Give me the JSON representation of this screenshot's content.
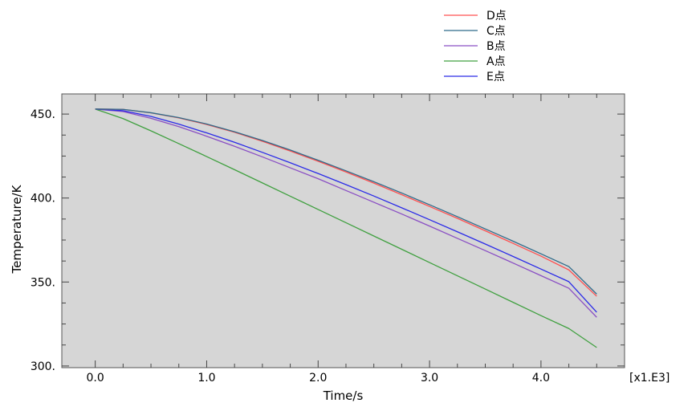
{
  "chart_data": {
    "type": "line",
    "title": "",
    "xlabel": "Time/s",
    "ylabel": "Temperature/K",
    "x_multiplier_label": "[x1.E3]",
    "xlim": [
      -0.3,
      4.75
    ],
    "ylim": [
      299,
      462
    ],
    "x_ticks": [
      0.0,
      1.0,
      2.0,
      3.0,
      4.0
    ],
    "x_tick_labels": [
      "0.0",
      "1.0",
      "2.0",
      "3.0",
      "4.0"
    ],
    "y_ticks": [
      300,
      350,
      400,
      450
    ],
    "y_tick_labels": [
      "300.",
      "350.",
      "400.",
      "450."
    ],
    "grid": false,
    "legend_position": "top-right outside",
    "background_color": "#d6d6d6",
    "x": [
      0.0,
      0.25,
      0.5,
      0.75,
      1.0,
      1.25,
      1.5,
      1.75,
      2.0,
      2.25,
      2.5,
      2.75,
      3.0,
      3.25,
      3.5,
      3.75,
      4.0,
      4.25,
      4.5
    ],
    "series": [
      {
        "name": "D点",
        "color": "#ff5050",
        "values": [
          453.0,
          452.8,
          450.7,
          447.7,
          443.8,
          439.2,
          433.8,
          428.0,
          421.9,
          415.5,
          408.9,
          402.0,
          395.0,
          387.9,
          380.5,
          373.0,
          365.4,
          357.2,
          341.5
        ]
      },
      {
        "name": "C点",
        "color": "#2e6b8a",
        "values": [
          453.0,
          452.8,
          450.8,
          447.9,
          444.1,
          439.5,
          434.3,
          428.6,
          422.5,
          416.2,
          409.7,
          403.0,
          396.0,
          388.9,
          381.6,
          374.3,
          366.8,
          359.2,
          342.8
        ]
      },
      {
        "name": "B点",
        "color": "#8a4fc4",
        "values": [
          453.0,
          451.5,
          447.5,
          442.5,
          436.8,
          430.8,
          424.5,
          418.0,
          411.5,
          404.5,
          397.5,
          390.5,
          383.3,
          376.0,
          368.7,
          361.3,
          353.8,
          346.3,
          329.0
        ]
      },
      {
        "name": "A点",
        "color": "#40a040",
        "values": [
          453.0,
          447.3,
          440.0,
          432.4,
          424.7,
          416.9,
          409.0,
          401.1,
          393.2,
          385.3,
          377.4,
          369.5,
          361.6,
          353.7,
          345.8,
          337.9,
          330.0,
          322.3,
          311.0
        ]
      },
      {
        "name": "E点",
        "color": "#2a2ae8",
        "values": [
          453.0,
          452.0,
          448.6,
          444.0,
          438.8,
          433.2,
          427.2,
          421.0,
          414.6,
          408.0,
          401.2,
          394.2,
          387.1,
          379.9,
          372.6,
          365.2,
          357.7,
          350.2,
          332.0
        ]
      }
    ]
  }
}
